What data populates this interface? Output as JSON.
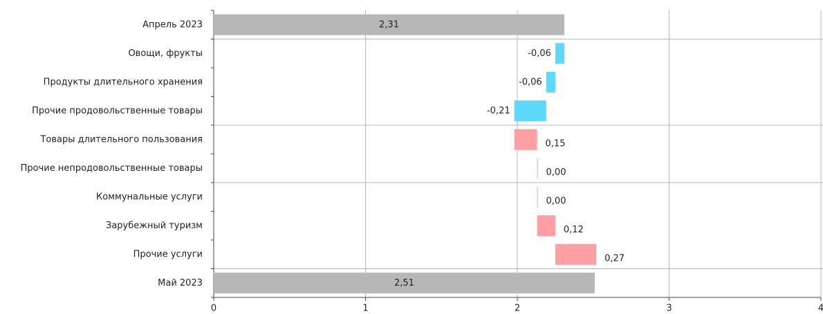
{
  "chart_data": {
    "type": "waterfall",
    "categories": [
      "Апрель 2023",
      "Овощи, фрукты",
      "Продукты длительного хранения",
      "Прочие продовольственные товары",
      "Товары длительного пользования",
      "Прочие непродовольственные товары",
      "Коммунальные услуги",
      "Зарубежный туризм",
      "Прочие услуги",
      "Май 2023"
    ],
    "values": [
      2.31,
      -0.06,
      -0.06,
      -0.21,
      0.15,
      0.0,
      0.0,
      0.12,
      0.27,
      2.51
    ],
    "value_labels": [
      "2,31",
      "-0,06",
      "-0,06",
      "-0,21",
      "0,15",
      "0,00",
      "0,00",
      "0,12",
      "0,27",
      "2,51"
    ],
    "total_color": "#b7b7b7",
    "decrease_color": "#5dd9fb",
    "increase_color": "#ff9fa3",
    "xlim": [
      0,
      4
    ],
    "xticks": [
      0,
      1,
      2,
      3,
      4
    ],
    "grid": true
  }
}
